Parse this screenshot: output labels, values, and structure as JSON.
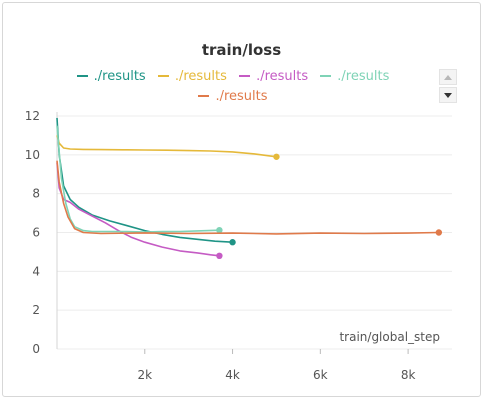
{
  "chart_data": {
    "type": "line",
    "title": "train/loss",
    "xlabel": "train/global_step",
    "ylabel": "",
    "xlim": [
      0,
      9000
    ],
    "ylim": [
      0,
      12
    ],
    "x_ticks": [
      2000,
      4000,
      6000,
      8000
    ],
    "x_tick_labels": [
      "2k",
      "4k",
      "6k",
      "8k"
    ],
    "y_ticks": [
      0,
      2,
      4,
      6,
      8,
      10,
      12
    ],
    "y_tick_labels": [
      "0",
      "2",
      "4",
      "6",
      "8",
      "10",
      "12"
    ],
    "grid": "horizontal",
    "legend_placement": "top",
    "series": [
      {
        "name": "./results",
        "color": "#1f9486",
        "x": [
          0,
          50,
          150,
          300,
          500,
          800,
          1200,
          1600,
          2000,
          2400,
          2800,
          3200,
          3600,
          4000
        ],
        "y": [
          11.9,
          10.0,
          8.4,
          7.7,
          7.3,
          6.9,
          6.6,
          6.35,
          6.1,
          5.9,
          5.75,
          5.65,
          5.55,
          5.5
        ]
      },
      {
        "name": "./results",
        "color": "#e5b93a",
        "x": [
          0,
          50,
          150,
          300,
          600,
          1000,
          1500,
          2000,
          2500,
          3000,
          3500,
          4000,
          4500,
          5000
        ],
        "y": [
          11.0,
          10.6,
          10.35,
          10.3,
          10.28,
          10.27,
          10.26,
          10.25,
          10.24,
          10.22,
          10.2,
          10.15,
          10.05,
          9.9
        ]
      },
      {
        "name": "./results",
        "color": "#c55bc4",
        "x": [
          0,
          50,
          150,
          300,
          500,
          800,
          1100,
          1400,
          1700,
          2000,
          2400,
          2800,
          3200,
          3500,
          3700
        ],
        "y": [
          9.6,
          8.3,
          7.7,
          7.55,
          7.2,
          6.85,
          6.5,
          6.1,
          5.75,
          5.5,
          5.25,
          5.05,
          4.95,
          4.85,
          4.8
        ]
      },
      {
        "name": "./results",
        "color": "#7fd3b6",
        "x": [
          0,
          100,
          200,
          300,
          400,
          600,
          800,
          1200,
          1600,
          2000,
          2400,
          2800,
          3200,
          3700
        ],
        "y": [
          11.5,
          8.8,
          7.5,
          6.7,
          6.3,
          6.1,
          6.05,
          6.05,
          6.05,
          6.02,
          6.05,
          6.05,
          6.08,
          6.12
        ]
      },
      {
        "name": "./results",
        "color": "#e07a4a",
        "x": [
          0,
          50,
          150,
          250,
          400,
          600,
          1000,
          2000,
          3000,
          4000,
          5000,
          6000,
          7000,
          8000,
          8700
        ],
        "y": [
          9.7,
          8.6,
          7.5,
          6.8,
          6.2,
          6.0,
          5.95,
          5.98,
          5.95,
          5.97,
          5.93,
          5.97,
          5.95,
          5.97,
          6.0
        ]
      }
    ]
  },
  "legend": {
    "items": [
      {
        "label": "./results",
        "color": "#1f9486"
      },
      {
        "label": "./results",
        "color": "#e5b93a"
      },
      {
        "label": "./results",
        "color": "#c55bc4"
      },
      {
        "label": "./results",
        "color": "#7fd3b6"
      },
      {
        "label": "./results",
        "color": "#e07a4a"
      }
    ]
  },
  "icons": {
    "scroll_up": "chevron-up-icon",
    "scroll_down": "chevron-down-icon"
  }
}
